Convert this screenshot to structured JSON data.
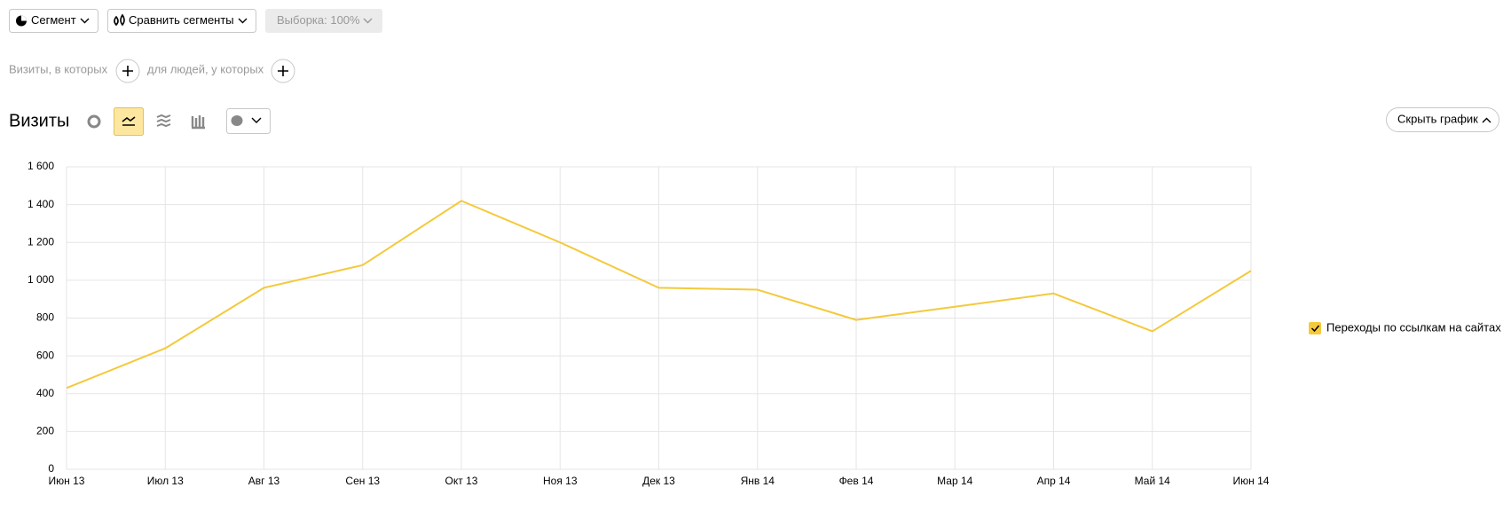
{
  "toolbar": {
    "segment": "Сегмент",
    "compare": "Сравнить сегменты",
    "sample": "Выборка: 100%"
  },
  "filters": {
    "visits": "Визиты, в которых",
    "people": "для людей, у которых"
  },
  "report": {
    "title": "Визиты",
    "hide_chart": "Скрыть график"
  },
  "chart_data": {
    "type": "line",
    "categories": [
      "Июн 13",
      "Июл 13",
      "Авг 13",
      "Сен 13",
      "Окт 13",
      "Ноя 13",
      "Дек 13",
      "Янв 14",
      "Фев 14",
      "Мар 14",
      "Апр 14",
      "Май 14",
      "Июн 14"
    ],
    "series": [
      {
        "name": "Переходы по ссылкам на сайтах",
        "color": "#f4c93c",
        "values": [
          430,
          640,
          960,
          1080,
          1420,
          1200,
          960,
          950,
          790,
          860,
          930,
          730,
          1050
        ]
      }
    ],
    "ylim": [
      0,
      1600
    ],
    "yticks": [
      0,
      200,
      400,
      600,
      800,
      {
        "value": 1000,
        "label": "1 000"
      },
      {
        "value": 1200,
        "label": "1 200"
      },
      {
        "value": 1400,
        "label": "1 400"
      },
      {
        "value": 1600,
        "label": "1 600"
      }
    ],
    "grid": true
  }
}
